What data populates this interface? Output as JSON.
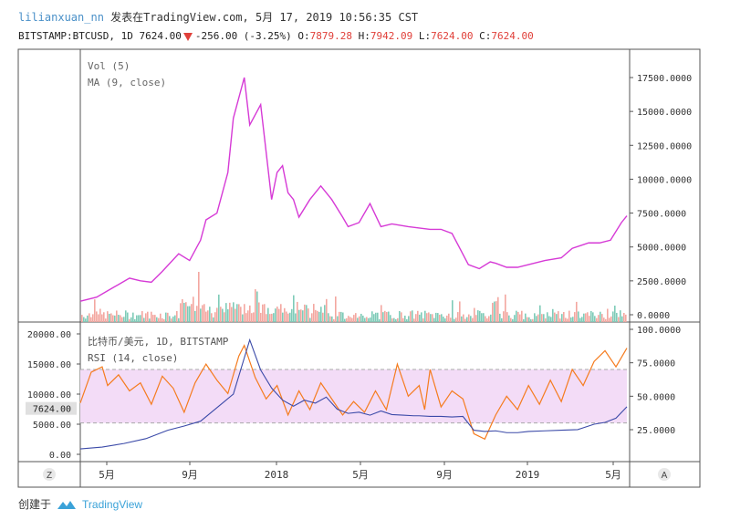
{
  "header": {
    "user": "lilianxuan_nn",
    "published": "发表在TradingView.com, 5月 17, 2019 10:56:35 CST",
    "symbol": "BITSTAMP:BTCUSD, 1D",
    "price": "7624.00",
    "change": "-256.00 (-3.25%)",
    "o_label": "O:",
    "o_value": "7879.28",
    "h_label": "H:",
    "h_value": "7942.09",
    "l_label": "L:",
    "l_value": "7624.00",
    "c_label": "C:",
    "c_value": "7624.00"
  },
  "footer": {
    "created": "创建于",
    "brand": "TradingView"
  },
  "buttons": {
    "left": "Z",
    "right": "A"
  },
  "colors": {
    "ma_line": "#d63ad6",
    "rsi_line": "#f57c1f",
    "price_line": "#3b4aa8",
    "vol_up": "#7ecbb8",
    "vol_down": "#f3a7a0",
    "rsi_band": "#f3dcf7",
    "price_tag": "#e0e0e0"
  },
  "chart_data": [
    {
      "type": "line",
      "legend": [
        "Vol (5)",
        "MA (9, close)"
      ],
      "x_ticks": [
        "5月",
        "9月",
        "2018",
        "5月",
        "9月",
        "2019",
        "5月"
      ],
      "y_ticks": [
        "17500.0000",
        "15000.0000",
        "12500.0000",
        "10000.0000",
        "7500.0000",
        "5000.0000",
        "2500.0000",
        "0.0000"
      ],
      "ylim": [
        0,
        17500
      ],
      "series": [
        {
          "kind": "line",
          "x": [
            0.0,
            0.03,
            0.06,
            0.09,
            0.11,
            0.13,
            0.15,
            0.18,
            0.2,
            0.22,
            0.23,
            0.25,
            0.27,
            0.28,
            0.3,
            0.31,
            0.33,
            0.34,
            0.35,
            0.36,
            0.37,
            0.38,
            0.39,
            0.4,
            0.42,
            0.44,
            0.46,
            0.48,
            0.49,
            0.51,
            0.53,
            0.55,
            0.57,
            0.6,
            0.62,
            0.64,
            0.66,
            0.68,
            0.71,
            0.73,
            0.75,
            0.76,
            0.78,
            0.8,
            0.82,
            0.85,
            0.88,
            0.9,
            0.93,
            0.95,
            0.97,
            0.99,
            1.0
          ],
          "y": [
            1000,
            1300,
            2000,
            2700,
            2500,
            2400,
            3200,
            4500,
            4000,
            5500,
            7000,
            7500,
            10500,
            14500,
            17500,
            14000,
            15500,
            12000,
            8500,
            10500,
            11000,
            9000,
            8500,
            7200,
            8500,
            9500,
            8500,
            7200,
            6500,
            6800,
            8200,
            6500,
            6700,
            6500,
            6400,
            6300,
            6300,
            6000,
            3700,
            3400,
            3900,
            3800,
            3500,
            3500,
            3700,
            4000,
            4200,
            4900,
            5300,
            5300,
            5500,
            6800,
            7300
          ]
        }
      ]
    },
    {
      "type": "line",
      "legend": [
        "比特币/美元, 1D, BITSTAMP",
        "RSI (14, close)"
      ],
      "left_y_ticks": [
        "20000.00",
        "15000.00",
        "10000.00",
        "5000.00",
        "0.00"
      ],
      "right_y_ticks": [
        "100.0000",
        "75.0000",
        "50.0000",
        "25.0000"
      ],
      "price_tag": "7624.00",
      "rsi_band": [
        30,
        70
      ],
      "ylim_price": [
        0,
        20000
      ],
      "ylim_rsi": [
        0,
        100
      ],
      "series": [
        {
          "name": "RSI (14, close)",
          "x": [
            0.0,
            0.02,
            0.04,
            0.05,
            0.07,
            0.09,
            0.11,
            0.13,
            0.15,
            0.17,
            0.19,
            0.21,
            0.23,
            0.25,
            0.27,
            0.29,
            0.3,
            0.32,
            0.34,
            0.36,
            0.38,
            0.4,
            0.42,
            0.44,
            0.46,
            0.48,
            0.5,
            0.52,
            0.54,
            0.56,
            0.58,
            0.6,
            0.62,
            0.63,
            0.64,
            0.65,
            0.66,
            0.68,
            0.7,
            0.72,
            0.74,
            0.76,
            0.78,
            0.8,
            0.82,
            0.84,
            0.86,
            0.88,
            0.9,
            0.92,
            0.94,
            0.96,
            0.98,
            1.0
          ],
          "y": [
            45,
            68,
            72,
            58,
            66,
            54,
            60,
            44,
            65,
            56,
            38,
            60,
            74,
            62,
            52,
            80,
            88,
            64,
            48,
            58,
            36,
            54,
            40,
            60,
            48,
            36,
            46,
            38,
            54,
            40,
            74,
            50,
            58,
            40,
            70,
            56,
            42,
            54,
            48,
            22,
            18,
            36,
            50,
            40,
            58,
            44,
            62,
            46,
            70,
            58,
            76,
            84,
            72,
            86
          ]
        },
        {
          "name": "比特币/美元, 1D, BITSTAMP",
          "x": [
            0.0,
            0.04,
            0.08,
            0.12,
            0.16,
            0.19,
            0.22,
            0.24,
            0.26,
            0.28,
            0.3,
            0.31,
            0.33,
            0.35,
            0.37,
            0.39,
            0.41,
            0.43,
            0.45,
            0.47,
            0.49,
            0.51,
            0.53,
            0.55,
            0.57,
            0.59,
            0.61,
            0.62,
            0.64,
            0.66,
            0.68,
            0.7,
            0.72,
            0.74,
            0.76,
            0.78,
            0.8,
            0.82,
            0.85,
            0.88,
            0.91,
            0.94,
            0.96,
            0.98,
            1.0
          ],
          "y": [
            900,
            1200,
            1800,
            2600,
            4000,
            4700,
            5500,
            7000,
            8500,
            10000,
            16000,
            19000,
            14000,
            11000,
            9000,
            8000,
            9000,
            8500,
            9500,
            7500,
            6800,
            7000,
            6500,
            7200,
            6600,
            6500,
            6400,
            6400,
            6300,
            6300,
            6200,
            6300,
            4000,
            3800,
            3900,
            3600,
            3600,
            3800,
            3900,
            4000,
            4100,
            5000,
            5300,
            6000,
            7900
          ]
        }
      ]
    }
  ]
}
